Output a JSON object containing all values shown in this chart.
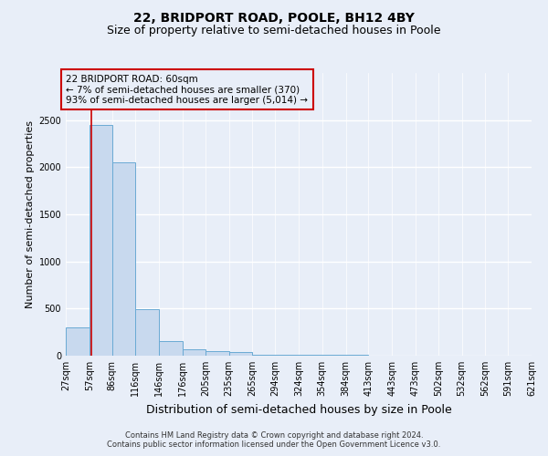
{
  "title": "22, BRIDPORT ROAD, POOLE, BH12 4BY",
  "subtitle": "Size of property relative to semi-detached houses in Poole",
  "xlabel": "Distribution of semi-detached houses by size in Poole",
  "ylabel": "Number of semi-detached properties",
  "footer_line1": "Contains HM Land Registry data © Crown copyright and database right 2024.",
  "footer_line2": "Contains public sector information licensed under the Open Government Licence v3.0.",
  "annotation_title": "22 BRIDPORT ROAD: 60sqm",
  "annotation_line1": "← 7% of semi-detached houses are smaller (370)",
  "annotation_line2": "93% of semi-detached houses are larger (5,014) →",
  "property_size": 60,
  "bin_edges": [
    27,
    57,
    86,
    116,
    146,
    176,
    205,
    235,
    265,
    294,
    324,
    354,
    384,
    413,
    443,
    473,
    502,
    532,
    562,
    591,
    621
  ],
  "bar_heights": [
    300,
    2450,
    2050,
    490,
    155,
    70,
    50,
    35,
    5,
    5,
    5,
    5,
    5,
    3,
    3,
    2,
    2,
    1,
    1,
    1
  ],
  "bar_color": "#c8d9ee",
  "bar_edge_color": "#6aaad4",
  "vline_color": "#cc0000",
  "vline_x": 60,
  "ylim": [
    0,
    3000
  ],
  "yticks": [
    0,
    500,
    1000,
    1500,
    2000,
    2500
  ],
  "background_color": "#e8eef8",
  "grid_color": "#ffffff",
  "title_fontsize": 10,
  "subtitle_fontsize": 9,
  "ylabel_fontsize": 8,
  "xlabel_fontsize": 9,
  "tick_fontsize": 7,
  "annotation_fontsize": 7.5,
  "footer_fontsize": 6
}
